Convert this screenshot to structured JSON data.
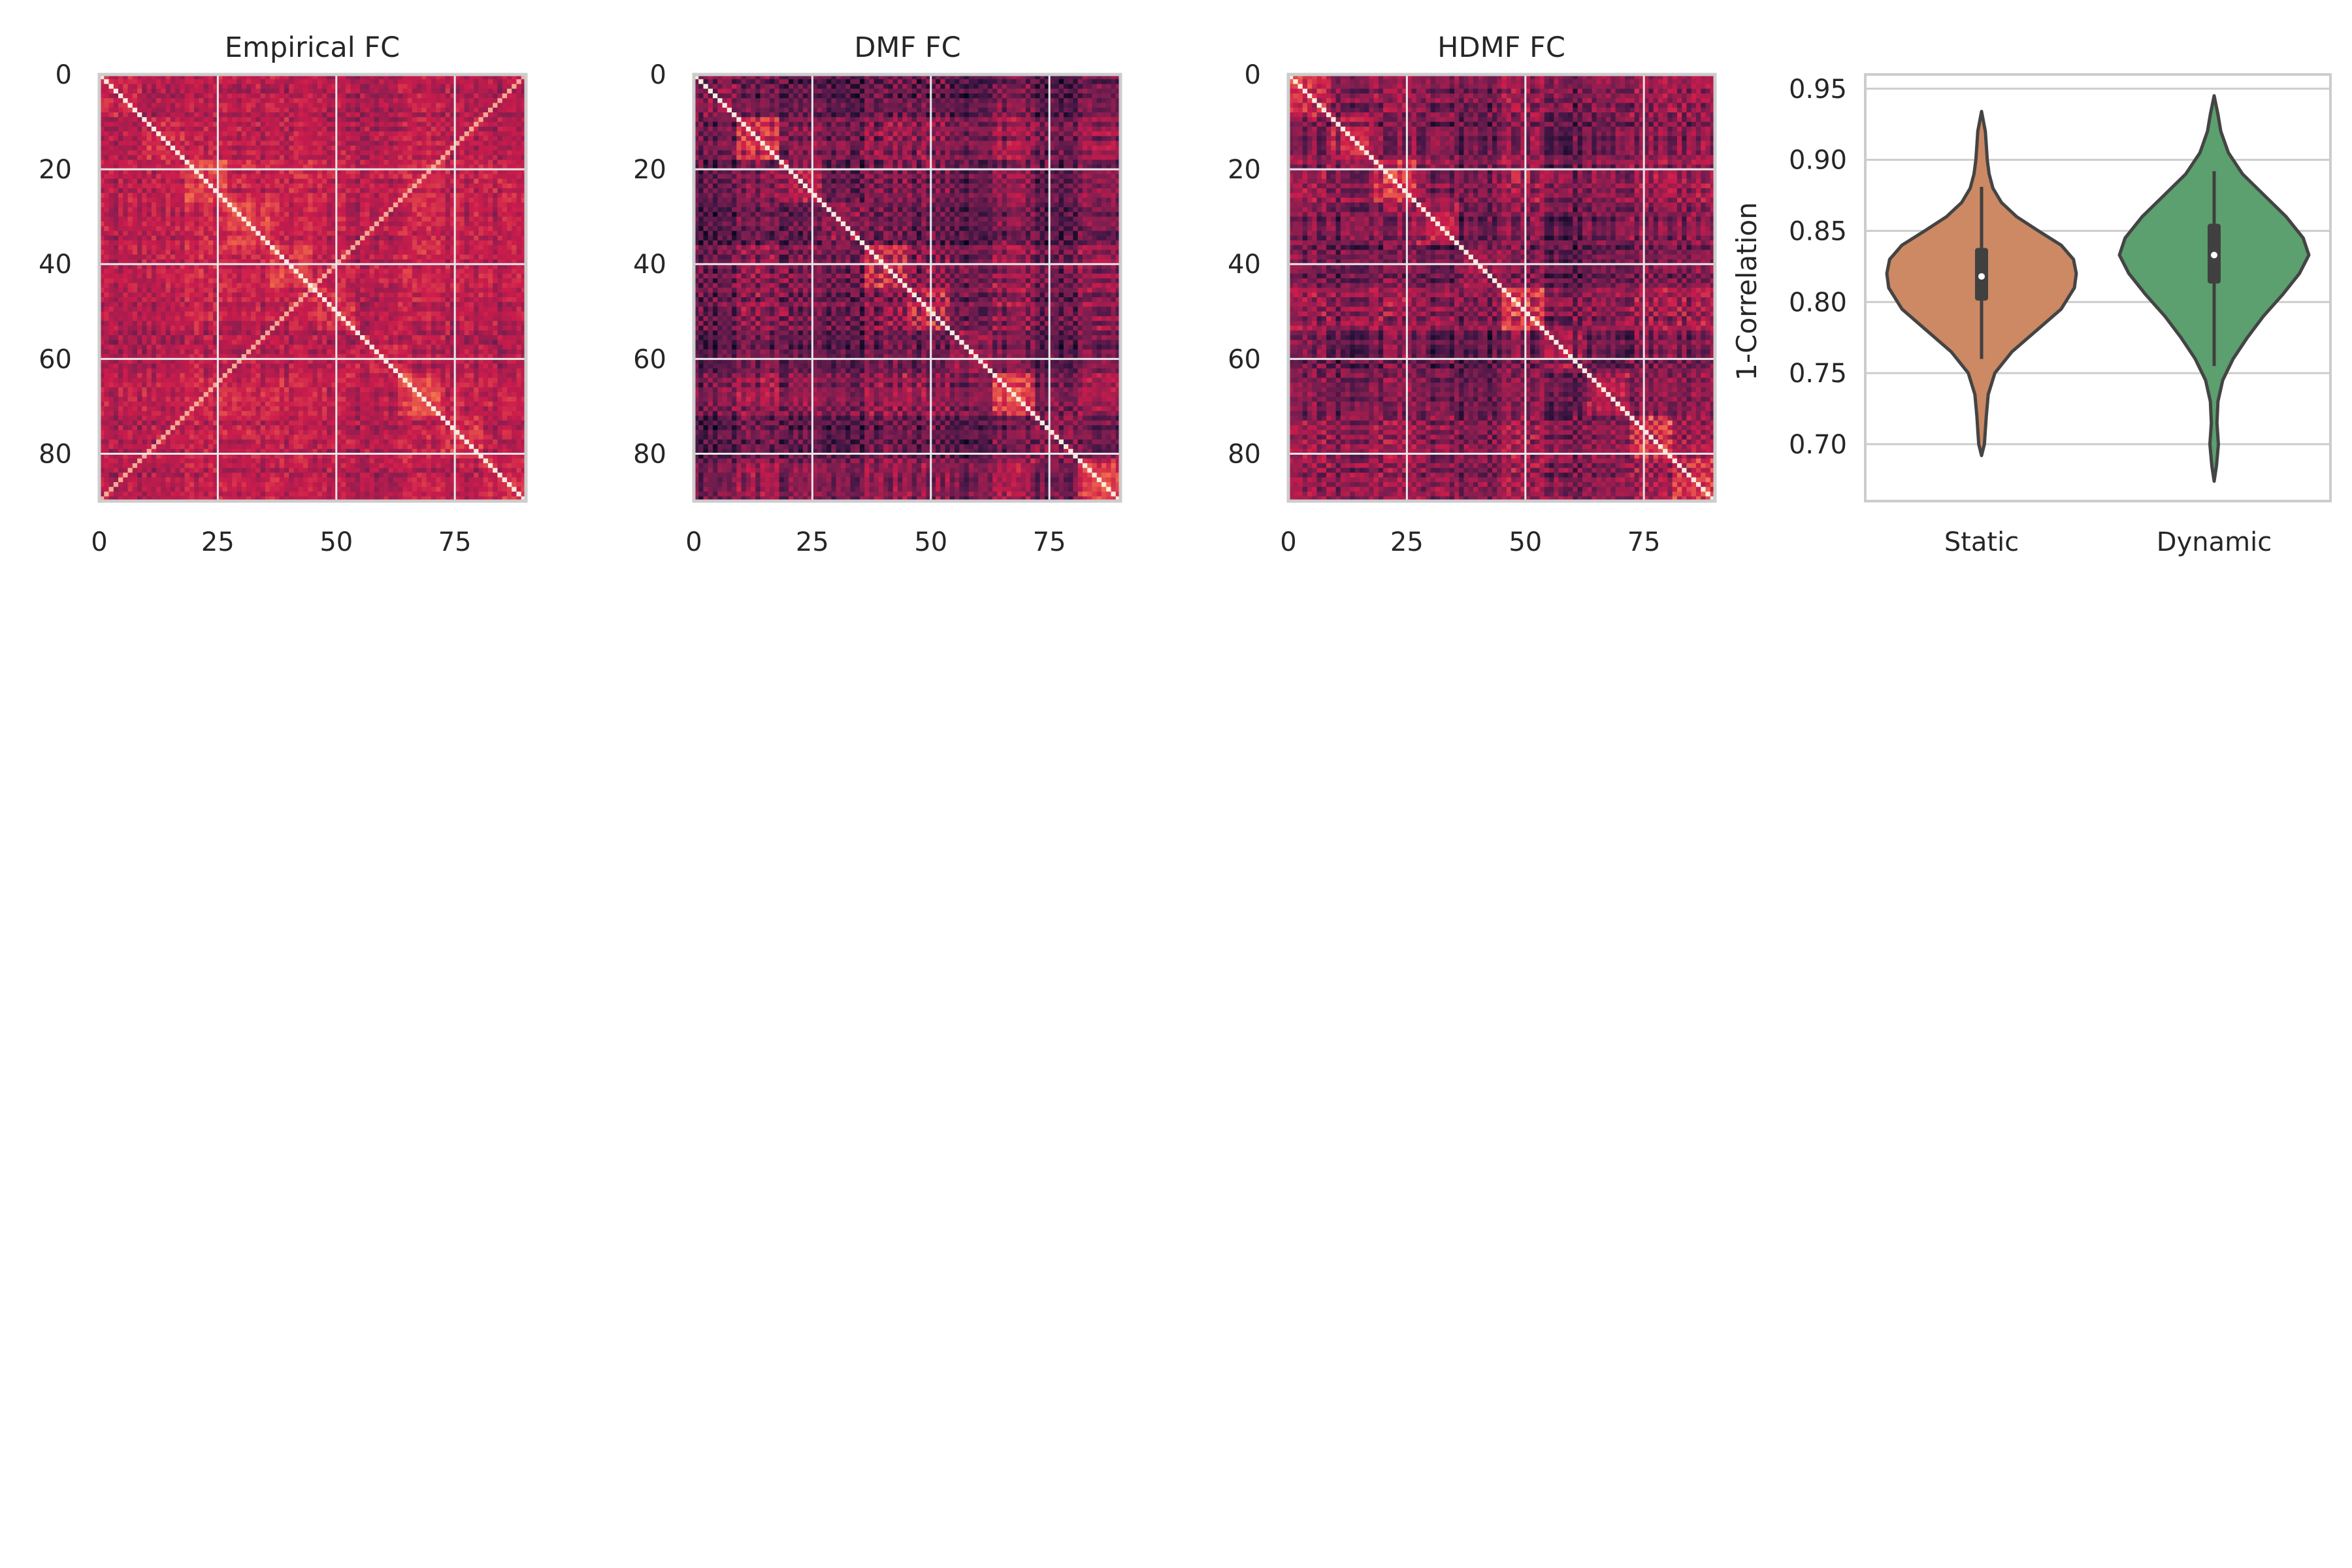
{
  "figure": {
    "background": "#ffffff",
    "grid_color": "#cccccc",
    "spine_color": "#cccccc",
    "text_color": "#262626"
  },
  "chart_data": [
    {
      "type": "heatmap",
      "title": "Empirical FC",
      "xlabel": "",
      "ylabel": "",
      "matrix_size": 90,
      "x_ticks": [
        0,
        25,
        50,
        75
      ],
      "y_ticks": [
        0,
        20,
        40,
        60,
        80
      ],
      "x_tick_labels": [
        "0",
        "25",
        "50",
        "75"
      ],
      "y_tick_labels": [
        "0",
        "20",
        "40",
        "60",
        "80"
      ],
      "xlim": [
        0,
        90
      ],
      "ylim": [
        90,
        0
      ],
      "colormap": "rocket",
      "grid": true,
      "pattern": {
        "base": 0.52,
        "contrast": 0.35,
        "diagonal": 1.0,
        "homotopic_diagonal": true
      }
    },
    {
      "type": "heatmap",
      "title": "DMF FC",
      "xlabel": "",
      "ylabel": "",
      "matrix_size": 90,
      "x_ticks": [
        0,
        25,
        50,
        75
      ],
      "y_ticks": [
        0,
        20,
        40,
        60,
        80
      ],
      "x_tick_labels": [
        "0",
        "25",
        "50",
        "75"
      ],
      "y_tick_labels": [
        "0",
        "20",
        "40",
        "60",
        "80"
      ],
      "xlim": [
        0,
        90
      ],
      "ylim": [
        90,
        0
      ],
      "colormap": "rocket",
      "grid": true,
      "pattern": {
        "base": 0.3,
        "contrast": 0.7,
        "diagonal": 1.0,
        "homotopic_diagonal": false
      }
    },
    {
      "type": "heatmap",
      "title": "HDMF FC",
      "xlabel": "",
      "ylabel": "",
      "matrix_size": 90,
      "x_ticks": [
        0,
        25,
        50,
        75
      ],
      "y_ticks": [
        0,
        20,
        40,
        60,
        80
      ],
      "x_tick_labels": [
        "0",
        "25",
        "50",
        "75"
      ],
      "y_tick_labels": [
        "0",
        "20",
        "40",
        "60",
        "80"
      ],
      "xlim": [
        0,
        90
      ],
      "ylim": [
        90,
        0
      ],
      "colormap": "rocket",
      "grid": true,
      "pattern": {
        "base": 0.32,
        "contrast": 0.68,
        "diagonal": 1.0,
        "homotopic_diagonal": false
      }
    },
    {
      "type": "violin",
      "title": "",
      "xlabel": "",
      "ylabel": "1-Correlation",
      "categories": [
        "Static",
        "Dynamic"
      ],
      "ylim": [
        0.66,
        0.96
      ],
      "y_ticks": [
        0.7,
        0.75,
        0.8,
        0.85,
        0.9,
        0.95
      ],
      "y_tick_labels": [
        "0.70",
        "0.75",
        "0.80",
        "0.85",
        "0.90",
        "0.95"
      ],
      "grid": true,
      "series": [
        {
          "color": "#cc8963",
          "median": 0.818,
          "q1": 0.801,
          "q3": 0.838,
          "whisker_low": 0.76,
          "whisker_high": 0.881,
          "density": [
            [
              0.692,
              0.0
            ],
            [
              0.7,
              0.03
            ],
            [
              0.71,
              0.04
            ],
            [
              0.72,
              0.05
            ],
            [
              0.735,
              0.07
            ],
            [
              0.75,
              0.14
            ],
            [
              0.765,
              0.32
            ],
            [
              0.78,
              0.58
            ],
            [
              0.795,
              0.84
            ],
            [
              0.81,
              0.98
            ],
            [
              0.82,
              1.0
            ],
            [
              0.83,
              0.97
            ],
            [
              0.84,
              0.84
            ],
            [
              0.85,
              0.6
            ],
            [
              0.86,
              0.37
            ],
            [
              0.87,
              0.21
            ],
            [
              0.88,
              0.12
            ],
            [
              0.89,
              0.08
            ],
            [
              0.9,
              0.06
            ],
            [
              0.91,
              0.05
            ],
            [
              0.92,
              0.04
            ],
            [
              0.934,
              0.0
            ]
          ]
        },
        {
          "color": "#5ba06e",
          "median": 0.833,
          "q1": 0.813,
          "q3": 0.855,
          "whisker_low": 0.755,
          "whisker_high": 0.892,
          "density": [
            [
              0.674,
              0.0
            ],
            [
              0.685,
              0.025
            ],
            [
              0.7,
              0.045
            ],
            [
              0.715,
              0.03
            ],
            [
              0.73,
              0.04
            ],
            [
              0.745,
              0.09
            ],
            [
              0.76,
              0.2
            ],
            [
              0.775,
              0.35
            ],
            [
              0.79,
              0.52
            ],
            [
              0.805,
              0.72
            ],
            [
              0.82,
              0.9
            ],
            [
              0.833,
              1.0
            ],
            [
              0.845,
              0.94
            ],
            [
              0.86,
              0.76
            ],
            [
              0.875,
              0.53
            ],
            [
              0.89,
              0.3
            ],
            [
              0.905,
              0.15
            ],
            [
              0.92,
              0.07
            ],
            [
              0.932,
              0.04
            ],
            [
              0.945,
              0.0
            ]
          ]
        }
      ]
    }
  ]
}
